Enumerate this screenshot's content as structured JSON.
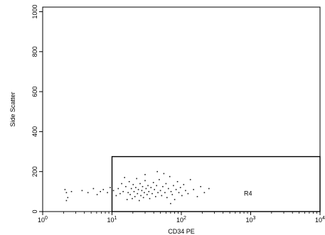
{
  "chart_data": {
    "type": "scatter",
    "title": "",
    "xlabel": "CD34 PE",
    "ylabel": "Side Scatter",
    "x_scale": "log",
    "xlim": [
      1,
      10000
    ],
    "ylim": [
      0,
      1023
    ],
    "grid": false,
    "x_ticks": [
      {
        "base": "10",
        "exp": "0",
        "value": 1
      },
      {
        "base": "10",
        "exp": "1",
        "value": 10
      },
      {
        "base": "10",
        "exp": "2",
        "value": 100
      },
      {
        "base": "10",
        "exp": "3",
        "value": 1000
      },
      {
        "base": "10",
        "exp": "4",
        "value": 10000
      }
    ],
    "y_ticks": [
      "0",
      "200",
      "400",
      "600",
      "800",
      "1000"
    ],
    "y_tick_values": [
      0,
      200,
      400,
      600,
      800,
      1000
    ],
    "gate": {
      "name": "R4",
      "x_min": 10,
      "x_max": 10000,
      "y_min": 0,
      "y_max": 275
    },
    "points": [
      [
        2.1,
        110
      ],
      [
        2.2,
        95
      ],
      [
        2.3,
        70
      ],
      [
        2.2,
        55
      ],
      [
        2.6,
        100
      ],
      [
        3.7,
        105
      ],
      [
        4.5,
        95
      ],
      [
        5.4,
        115
      ],
      [
        6.1,
        85
      ],
      [
        6.8,
        100
      ],
      [
        7.5,
        110
      ],
      [
        8.6,
        95
      ],
      [
        9.4,
        120
      ],
      [
        10.5,
        105
      ],
      [
        11.5,
        80
      ],
      [
        12.3,
        115
      ],
      [
        13.1,
        90
      ],
      [
        13.8,
        140
      ],
      [
        14.5,
        100
      ],
      [
        15.2,
        170
      ],
      [
        15.8,
        125
      ],
      [
        16.5,
        60
      ],
      [
        17.1,
        95
      ],
      [
        17.7,
        150
      ],
      [
        18.3,
        85
      ],
      [
        19.0,
        115
      ],
      [
        19.6,
        65
      ],
      [
        20.2,
        135
      ],
      [
        20.8,
        100
      ],
      [
        21.4,
        75
      ],
      [
        22.0,
        120
      ],
      [
        22.7,
        165
      ],
      [
        23.3,
        90
      ],
      [
        24.0,
        110
      ],
      [
        24.7,
        55
      ],
      [
        25.4,
        140
      ],
      [
        26.1,
        80
      ],
      [
        26.9,
        105
      ],
      [
        27.6,
        125
      ],
      [
        28.4,
        70
      ],
      [
        29.2,
        95
      ],
      [
        30.0,
        155
      ],
      [
        31.0,
        115
      ],
      [
        32.0,
        85
      ],
      [
        33.0,
        130
      ],
      [
        34.0,
        100
      ],
      [
        35.0,
        65
      ],
      [
        36.5,
        120
      ],
      [
        38.0,
        90
      ],
      [
        39.5,
        145
      ],
      [
        41.0,
        110
      ],
      [
        42.5,
        75
      ],
      [
        44.0,
        130
      ],
      [
        46.0,
        95
      ],
      [
        48.0,
        160
      ],
      [
        50.0,
        105
      ],
      [
        52.0,
        80
      ],
      [
        54.0,
        125
      ],
      [
        56.0,
        190
      ],
      [
        58.0,
        95
      ],
      [
        60.0,
        140
      ],
      [
        62.0,
        70
      ],
      [
        65.0,
        115
      ],
      [
        68.0,
        175
      ],
      [
        71.0,
        100
      ],
      [
        74.0,
        85
      ],
      [
        77.0,
        130
      ],
      [
        80.0,
        60
      ],
      [
        84.0,
        110
      ],
      [
        88.0,
        150
      ],
      [
        92.0,
        95
      ],
      [
        97.0,
        120
      ],
      [
        102.0,
        80
      ],
      [
        108.0,
        135
      ],
      [
        115.0,
        105
      ],
      [
        125.0,
        90
      ],
      [
        135.0,
        160
      ],
      [
        150.0,
        110
      ],
      [
        170.0,
        75
      ],
      [
        190.0,
        125
      ],
      [
        215.0,
        95
      ],
      [
        250.0,
        115
      ],
      [
        45.0,
        200
      ],
      [
        70.0,
        40
      ],
      [
        30.0,
        185
      ]
    ]
  }
}
